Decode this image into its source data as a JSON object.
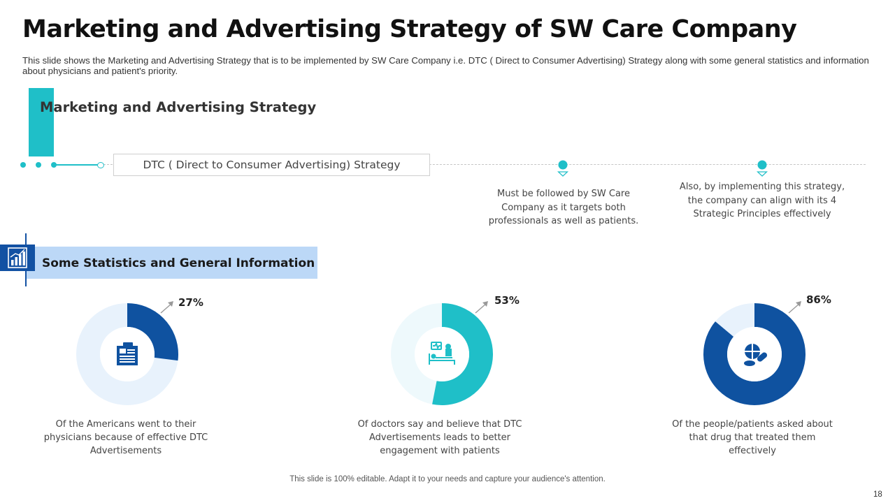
{
  "slide": {
    "title": "Marketing and Advertising Strategy of SW Care Company",
    "subtitle": "This slide shows the Marketing and Advertising Strategy that is to be implemented by SW Care Company i.e. DTC ( Direct to Consumer Advertising) Strategy along with some general statistics and information about physicians and patient's priority.",
    "footer": "This slide is 100% editable. Adapt it to your needs and capture your audience's attention.",
    "page_number": "18"
  },
  "strategy": {
    "heading": "Marketing and Advertising Strategy",
    "box_label": "DTC ( Direct to Consumer Advertising) Strategy",
    "points": [
      "Must be followed by SW Care Company as it targets both professionals as well as patients.",
      "Also, by implementing this strategy, the company can align with its 4 Strategic Principles effectively"
    ]
  },
  "statistics": {
    "heading": "Some Statistics and General Information",
    "items": [
      {
        "percent_label": "27%",
        "value": 27,
        "caption": "Of the Americans went to their physicians because of effective DTC Advertisements",
        "icon": "news-report-icon",
        "color": "#0f52a0",
        "track": "#e8f2fc"
      },
      {
        "percent_label": "53%",
        "value": 53,
        "caption": "Of doctors say and believe that DTC Advertisements leads to better engagement with patients",
        "icon": "patient-bed-icon",
        "color": "#1fbfc8",
        "track": "#eef9fc"
      },
      {
        "percent_label": "86%",
        "value": 86,
        "caption": "Of the people/patients asked about that drug that treated them effectively",
        "icon": "pills-icon",
        "color": "#0f52a0",
        "track": "#e8f2fc"
      }
    ]
  },
  "colors": {
    "teal": "#1fbfc8",
    "navy": "#0f52a0",
    "banner": "#bcd8f7"
  }
}
